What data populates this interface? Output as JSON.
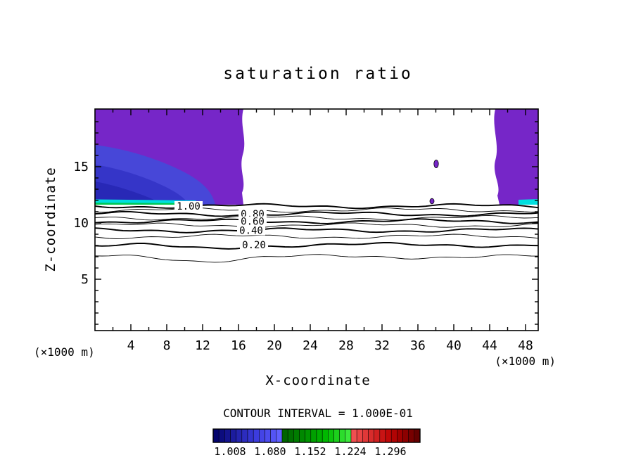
{
  "title": "saturation ratio",
  "colors": {
    "purple": "#7626c8",
    "blue_outer": "#4747d8",
    "blue_mid": "#3535c8",
    "blue_deep": "#2828b6",
    "cyan": "#00dede",
    "green": "#00c853",
    "axis": "#000000",
    "colorbar_label": "#8b0000"
  },
  "axes": {
    "x_label": "X-coordinate",
    "y_label": "Z-coordinate",
    "unit_left": "(×1000 m)",
    "unit_right": "(×1000 m)",
    "x_ticks": [
      4,
      8,
      12,
      16,
      20,
      24,
      28,
      32,
      36,
      40,
      44,
      48
    ],
    "y_ticks": [
      5,
      10,
      15
    ]
  },
  "annotations": {
    "contour_interval": "CONTOUR INTERVAL = 1.000E-01"
  },
  "colorbar": {
    "tick_labels": [
      "1.008",
      "1.080",
      "1.152",
      "1.224",
      "1.296"
    ],
    "colors": [
      "#04046e",
      "#0c0c7e",
      "#14148e",
      "#1c1c9e",
      "#2424ae",
      "#2c2cbe",
      "#3434ce",
      "#3c3cde",
      "#4444e6",
      "#4c4cee",
      "#5454f6",
      "#6060ff",
      "#006400",
      "#007000",
      "#007c00",
      "#008800",
      "#009400",
      "#00a000",
      "#00ac00",
      "#00b800",
      "#0cc40c",
      "#1cd01c",
      "#2cdc2c",
      "#3ce83c",
      "#f05050",
      "#e84444",
      "#e03838",
      "#d82c2c",
      "#d02020",
      "#c81414",
      "#c00808",
      "#b00404",
      "#a00000",
      "#8c0000",
      "#780000",
      "#640000"
    ]
  },
  "chart_data": {
    "type": "heatmap",
    "subtype": "filled-contour",
    "title": "saturation ratio",
    "xlabel": "X-coordinate (×1000 m)",
    "ylabel": "Z-coordinate (×1000 m)",
    "xlim": [
      0,
      49.4
    ],
    "ylim": [
      0,
      20
    ],
    "x_ticks": [
      4,
      8,
      12,
      16,
      20,
      24,
      28,
      32,
      36,
      40,
      44,
      48
    ],
    "y_ticks": [
      5,
      10,
      15
    ],
    "contour_interval": 0.1,
    "colorbar_ticks": [
      1.008,
      1.08,
      1.152,
      1.224,
      1.296
    ],
    "contour_lines": [
      {
        "level": 1.0,
        "z": 11.5,
        "label": "1.00"
      },
      {
        "level": 0.9,
        "z": 11.15
      },
      {
        "level": 0.8,
        "z": 10.8,
        "label": "0.80"
      },
      {
        "level": 0.7,
        "z": 10.45
      },
      {
        "level": 0.6,
        "z": 10.15,
        "label": "0.60"
      },
      {
        "level": 0.5,
        "z": 9.8
      },
      {
        "level": 0.4,
        "z": 9.35,
        "label": "0.40"
      },
      {
        "level": 0.3,
        "z": 8.8
      },
      {
        "level": 0.2,
        "z": 8.05,
        "label": "0.20"
      },
      {
        "level": 0.1,
        "z": 7.0
      }
    ],
    "filled_regions": [
      {
        "name": "left supersaturated region",
        "x_range": [
          0,
          16.6
        ],
        "z_range": [
          11.6,
          20
        ],
        "value": "saturation ratio > 1.0"
      },
      {
        "name": "right supersaturated region",
        "x_range": [
          44.6,
          49.4
        ],
        "z_range": [
          11.6,
          20
        ],
        "value": "saturation ratio > 1.0"
      },
      {
        "name": "isolated pocket upper",
        "x": 38.1,
        "z": 15.3,
        "value": "saturation ratio > 1.0"
      },
      {
        "name": "isolated pocket lower",
        "x": 37.6,
        "z": 12.0,
        "value": "saturation ratio > 1.0"
      }
    ],
    "legend_position": "bottom",
    "grid": false
  }
}
